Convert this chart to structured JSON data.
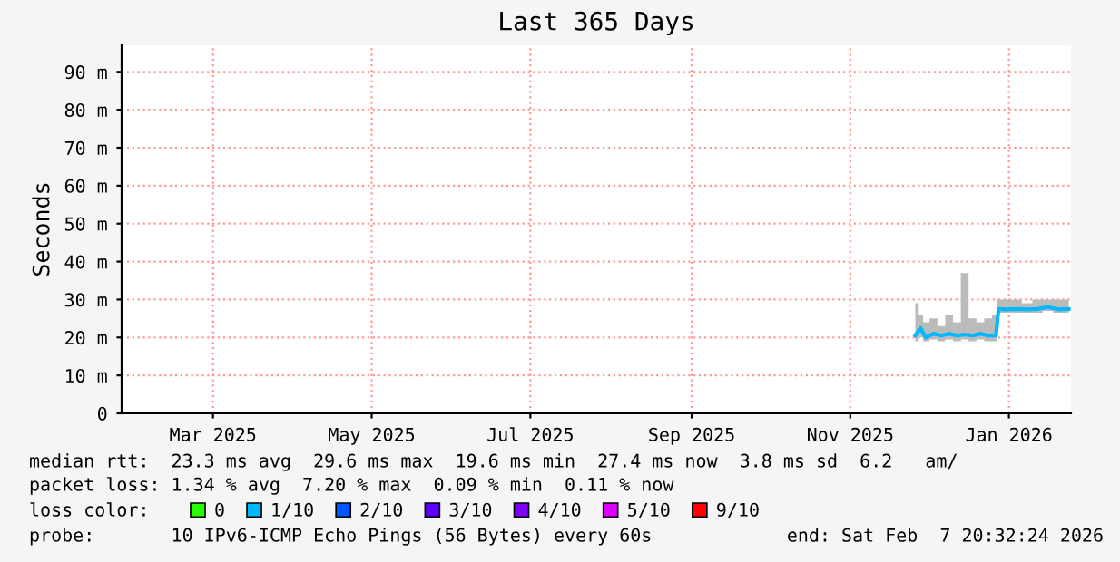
{
  "chart_data": {
    "type": "line",
    "title": "Last 365 Days",
    "ylabel": "Seconds",
    "x": [
      "2025-12-10",
      "2025-12-12",
      "2025-12-14",
      "2025-12-17",
      "2025-12-20",
      "2025-12-23",
      "2025-12-26",
      "2025-12-29",
      "2026-01-01",
      "2026-01-04",
      "2026-01-07",
      "2026-01-10",
      "2026-01-11",
      "2026-01-14",
      "2026-01-18",
      "2026-01-22",
      "2026-01-26",
      "2026-01-30",
      "2026-02-03",
      "2026-02-07"
    ],
    "series": [
      {
        "color": "#00b8ff",
        "values": [
          20.5,
          22.5,
          20.0,
          21.0,
          20.5,
          21.0,
          20.5,
          20.8,
          20.5,
          21.0,
          20.5,
          20.5,
          27.5,
          27.4,
          27.5,
          27.4,
          27.5,
          28.0,
          27.4,
          27.5
        ],
        "lower": [
          19,
          20,
          19,
          19.5,
          19,
          19.5,
          19,
          19.5,
          19,
          19.5,
          19,
          19,
          26.5,
          26.5,
          26.5,
          26.5,
          26.5,
          27,
          26.5,
          26.5
        ],
        "upper": [
          29,
          26,
          24,
          25,
          23,
          26,
          24,
          37,
          25,
          24,
          25,
          26,
          30,
          30,
          30,
          29,
          30,
          30,
          30,
          30
        ]
      },
      {
        "name": "0",
        "color": "#26ff00",
        "values": [
          null,
          null,
          null,
          null,
          null,
          null,
          null,
          null,
          null,
          null,
          null,
          null,
          null,
          null,
          null,
          null,
          null,
          null,
          null,
          null
        ]
      },
      {
        "name": "1/10",
        "color": "#00b8ff",
        "values": [
          null,
          null,
          null,
          null,
          null,
          null,
          null,
          null,
          null,
          null,
          null,
          null,
          null,
          null,
          null,
          null,
          null,
          null,
          null,
          null
        ]
      },
      {
        "name": "2/10",
        "color": "#0059ff",
        "values": [
          null,
          null,
          null,
          null,
          null,
          null,
          null,
          null,
          null,
          null,
          null,
          null,
          null,
          null,
          null,
          null,
          null,
          null,
          null,
          null
        ]
      },
      {
        "name": "3/10",
        "color": "#5e00ff",
        "values": [
          null,
          null,
          null,
          null,
          null,
          null,
          null,
          null,
          null,
          null,
          null,
          null,
          null,
          null,
          null,
          null,
          null,
          null,
          null,
          null
        ]
      },
      {
        "name": "4/10",
        "color": "#7e00ff",
        "values": [
          null,
          null,
          null,
          null,
          null,
          null,
          null,
          null,
          null,
          null,
          null,
          null,
          null,
          null,
          null,
          null,
          null,
          null,
          null,
          null
        ]
      },
      {
        "name": "5/10",
        "color": "#dd00ff",
        "values": [
          null,
          null,
          null,
          null,
          null,
          null,
          null,
          null,
          null,
          null,
          null,
          null,
          null,
          null,
          null,
          null,
          null,
          null,
          null,
          null
        ]
      },
      {
        "name": "9/10",
        "color": "#ff0000",
        "values": [
          null,
          null,
          null,
          null,
          null,
          null,
          null,
          null,
          null,
          null,
          null,
          null,
          null,
          null,
          null,
          null,
          null,
          null,
          null,
          null
        ]
      }
    ],
    "legend_title": "loss color:",
    "legend": "bottom",
    "xlim": [
      "2025-02-07T20:32",
      "2026-02-07T20:32"
    ],
    "xticks": [
      {
        "value": "2025-03-15",
        "label": "Mar 2025"
      },
      {
        "value": "2025-05-15",
        "label": "May 2025"
      },
      {
        "value": "2025-07-15",
        "label": "Jul 2025"
      },
      {
        "value": "2025-09-15",
        "label": "Sep 2025"
      },
      {
        "value": "2025-11-15",
        "label": "Nov 2025"
      },
      {
        "value": "2026-01-15",
        "label": "Jan 2026"
      }
    ],
    "ylim": [
      0,
      97
    ],
    "yticks": [
      0,
      {
        "value": 10,
        "label": "10 m"
      },
      {
        "value": 20,
        "label": "20 m"
      },
      {
        "value": 30,
        "label": "30 m"
      },
      {
        "value": 40,
        "label": "40 m"
      },
      {
        "value": 50,
        "label": "50 m"
      },
      {
        "value": 60,
        "label": "60 m"
      },
      {
        "value": 70,
        "label": "70 m"
      },
      {
        "value": 80,
        "label": "80 m"
      },
      {
        "value": 90,
        "label": "90 m"
      }
    ],
    "grid": true,
    "annotations": [
      "median rtt:  23.3 ms avg  29.6 ms max  19.6 ms min  27.4 ms now  3.8 ms sd  6.2   am/",
      "packet loss: 1.34 % avg  7.20 % max  0.09 % min  0.11 % now",
      "probe:       10 IPv6-ICMP Echo Pings (56 Bytes) every 60s",
      "end: Sat Feb  7 20:32:24 2026"
    ]
  }
}
